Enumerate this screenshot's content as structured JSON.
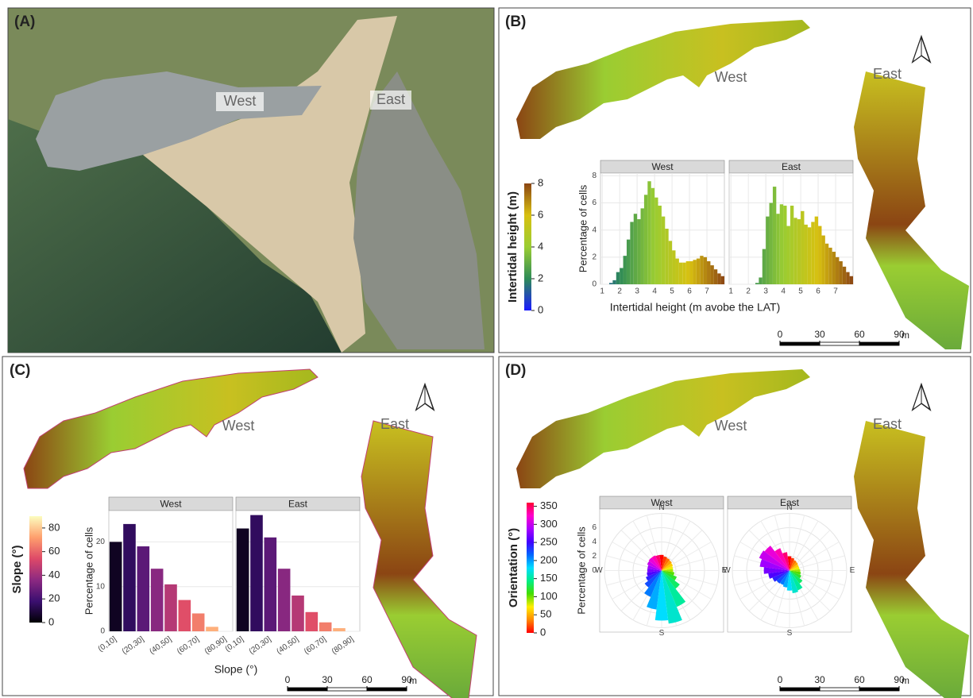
{
  "panels": [
    {
      "label": "(A)",
      "map_labels": [
        "West",
        "East"
      ]
    },
    {
      "label": "(B)",
      "map_labels": [
        "West",
        "East"
      ],
      "colorbar": {
        "title": "Intertidal height (m)",
        "lim": [
          0,
          8
        ],
        "ticks": [
          0,
          2,
          4,
          6,
          8
        ],
        "colors": [
          "#1a1aff",
          "#2e8b57",
          "#9acd32",
          "#d8c010",
          "#8b4513"
        ]
      },
      "scalebar": {
        "ticks": [
          0,
          30,
          60,
          90
        ],
        "unit": "m"
      }
    },
    {
      "label": "(C)",
      "map_labels": [
        "West",
        "East"
      ],
      "colorbar": {
        "title": "Slope (°)",
        "lim": [
          0,
          90
        ],
        "ticks": [
          0,
          20,
          40,
          60,
          80
        ],
        "colors": [
          "#000004",
          "#3b0f70",
          "#8c2981",
          "#de4968",
          "#fe9f6d",
          "#fcfdbf"
        ]
      },
      "scalebar": {
        "ticks": [
          0,
          30,
          60,
          90
        ],
        "unit": "m"
      }
    },
    {
      "label": "(D)",
      "map_labels": [
        "West",
        "East"
      ],
      "colorbar": {
        "title": "Orientation (°)",
        "lim": [
          0,
          360
        ],
        "ticks": [
          0,
          50,
          100,
          150,
          200,
          250,
          300,
          350
        ],
        "colors": [
          "#ff0000",
          "#ff8800",
          "#ffee00",
          "#44dd00",
          "#00ee88",
          "#00ddff",
          "#0066ff",
          "#4400ff",
          "#aa00ff",
          "#ff00cc",
          "#ff0033"
        ]
      },
      "scalebar": {
        "ticks": [
          0,
          30,
          60,
          90
        ],
        "unit": "m"
      }
    }
  ],
  "chart_data": [
    {
      "type": "histogram",
      "xlabel": "Intertidal height (m avobe the LAT)",
      "ylabel": "Percentage of cells",
      "bins": [
        1.4,
        1.6,
        1.8,
        2,
        2.2,
        2.4,
        2.6,
        2.8,
        3,
        3.2,
        3.4,
        3.6,
        3.8,
        4,
        4.2,
        4.4,
        4.6,
        4.8,
        5,
        5.2,
        5.4,
        5.6,
        5.8,
        6,
        6.2,
        6.4,
        6.6,
        6.8,
        7,
        7.2,
        7.4,
        7.6,
        7.8,
        8
      ],
      "facets": [
        {
          "title": "West",
          "values": [
            0.1,
            0.3,
            0.9,
            1.2,
            2.1,
            3.3,
            4.6,
            5.2,
            4.8,
            5.6,
            6.6,
            7.6,
            7.1,
            6.4,
            5.8,
            5.0,
            4.1,
            3.2,
            2.5,
            1.9,
            1.6,
            1.6,
            1.7,
            1.7,
            1.8,
            1.9,
            2.1,
            2.0,
            1.7,
            1.4,
            1.1,
            0.8,
            0.6
          ]
        },
        {
          "title": "East",
          "values": [
            0,
            0,
            0,
            0,
            0,
            0.1,
            0.5,
            2.6,
            5.0,
            6.0,
            7.2,
            5.2,
            5.9,
            5.8,
            4.3,
            5.8,
            4.9,
            4.8,
            5.4,
            4.4,
            4.2,
            4.6,
            5.0,
            4.3,
            3.6,
            3.0,
            2.7,
            2.4,
            2.0,
            1.7,
            1.3,
            0.9,
            0.6
          ]
        }
      ],
      "xlim": [
        0.9,
        8
      ],
      "xticks": [
        1,
        2,
        3,
        4,
        5,
        6,
        7
      ],
      "ylim": [
        0,
        8.2
      ],
      "yticks": [
        0,
        2,
        4,
        6,
        8
      ],
      "grid": true
    },
    {
      "type": "bar",
      "xlabel": "Slope (°)",
      "ylabel": "Percentage of cells",
      "categories": [
        "(0,10]",
        null,
        "(20,30]",
        null,
        "(40,50]",
        null,
        "(60,70]",
        null,
        "(80,90]"
      ],
      "facets": [
        {
          "title": "West",
          "values": [
            20,
            24,
            19,
            14,
            10.5,
            7,
            4,
            1,
            0
          ]
        },
        {
          "title": "East",
          "values": [
            23,
            26,
            21,
            14,
            8,
            4.3,
            2,
            0.7,
            0
          ]
        }
      ],
      "ylim": [
        0,
        27
      ],
      "yticks": [
        0,
        10,
        20
      ],
      "grid": true
    },
    {
      "type": "rose",
      "ylabel": "Percentage of cells",
      "directions": [
        "N",
        "E",
        "S",
        "W"
      ],
      "x": [
        0,
        15,
        30,
        45,
        60,
        75,
        90,
        105,
        120,
        135,
        150,
        165,
        180,
        195,
        210,
        225,
        240,
        255,
        270,
        285,
        300,
        315,
        330,
        345
      ],
      "facets": [
        {
          "title": "West",
          "values": [
            2.2,
            2.0,
            1.9,
            1.8,
            1.7,
            1.6,
            1.6,
            1.8,
            2.3,
            3.2,
            5.5,
            7.5,
            7.0,
            5.5,
            4.0,
            3.0,
            2.4,
            2.1,
            2.0,
            2.0,
            2.2,
            2.3,
            2.3,
            2.2
          ]
        },
        {
          "title": "East",
          "values": [
            2.0,
            1.8,
            1.6,
            1.5,
            1.4,
            1.4,
            1.5,
            1.6,
            1.8,
            2.3,
            3.0,
            3.2,
            2.8,
            2.4,
            2.2,
            2.3,
            2.6,
            3.0,
            3.6,
            4.2,
            4.6,
            4.4,
            3.4,
            2.6
          ]
        }
      ],
      "ylim": [
        0,
        8
      ],
      "yticks": [
        0,
        2,
        4,
        6
      ],
      "grid": true
    }
  ]
}
